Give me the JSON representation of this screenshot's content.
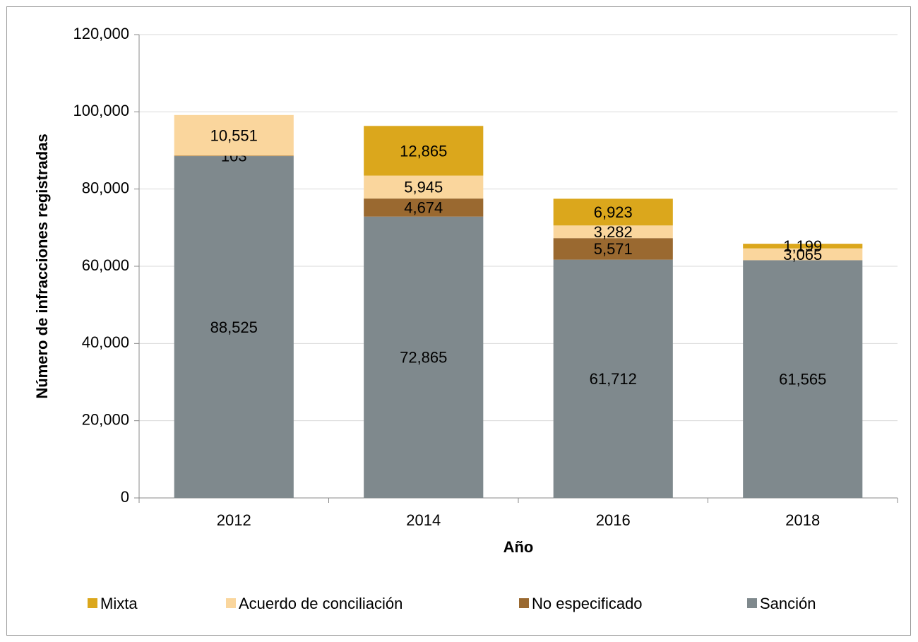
{
  "chart_data": {
    "type": "stacked_bar",
    "x_label": "Año",
    "y_label": "Número de infracciones registradas",
    "categories": [
      "2012",
      "2014",
      "2016",
      "2018"
    ],
    "series": [
      {
        "name": "Mixta",
        "color": "#dba71c",
        "values": [
          null,
          12865,
          6923,
          1199
        ],
        "value_labels": [
          null,
          "12,865",
          "6,923",
          "1,199"
        ]
      },
      {
        "name": "Acuerdo de conciliación",
        "color": "#fad69d",
        "values": [
          10551,
          5945,
          3282,
          3065
        ],
        "value_labels": [
          "10,551",
          "5,945",
          "3,282",
          "3,065"
        ]
      },
      {
        "name": "No especificado",
        "color": "#9a6930",
        "values": [
          103,
          4674,
          5571,
          null
        ],
        "value_labels": [
          "103",
          "4,674",
          "5,571",
          null
        ]
      },
      {
        "name": "Sanción",
        "color": "#7f898d",
        "values": [
          88525,
          72865,
          61712,
          61565
        ],
        "value_labels": [
          "88,525",
          "72,865",
          "61,712",
          "61,565"
        ]
      }
    ],
    "ylim": [
      0,
      120000
    ],
    "yticks": [
      0,
      {
        "value": 20000,
        "label": "20,000"
      },
      {
        "value": 40000,
        "label": "40,000"
      },
      {
        "value": 60000,
        "label": "60,000"
      },
      {
        "value": 80000,
        "label": "80,000"
      },
      {
        "value": 100000,
        "label": "100,000"
      },
      {
        "value": 120000,
        "label": "120,000"
      }
    ],
    "grid": true,
    "legend": "bottom"
  }
}
